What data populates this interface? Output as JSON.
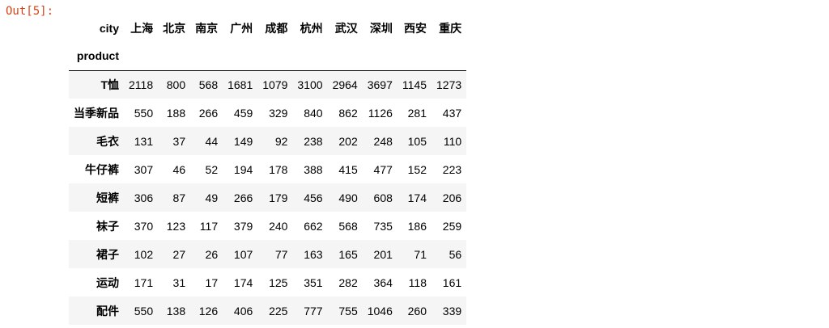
{
  "output_prompt": "Out[5]:",
  "dataframe": {
    "columns_name": "city",
    "index_name": "product",
    "columns": [
      "上海",
      "北京",
      "南京",
      "广州",
      "成都",
      "杭州",
      "武汉",
      "深圳",
      "西安",
      "重庆"
    ],
    "rows": [
      {
        "label": "T恤",
        "values": [
          "2118",
          "800",
          "568",
          "1681",
          "1079",
          "3100",
          "2964",
          "3697",
          "1145",
          "1273"
        ]
      },
      {
        "label": "当季新品",
        "values": [
          "550",
          "188",
          "266",
          "459",
          "329",
          "840",
          "862",
          "1126",
          "281",
          "437"
        ]
      },
      {
        "label": "毛衣",
        "values": [
          "131",
          "37",
          "44",
          "149",
          "92",
          "238",
          "202",
          "248",
          "105",
          "110"
        ]
      },
      {
        "label": "牛仔裤",
        "values": [
          "307",
          "46",
          "52",
          "194",
          "178",
          "388",
          "415",
          "477",
          "152",
          "223"
        ]
      },
      {
        "label": "短裤",
        "values": [
          "306",
          "87",
          "49",
          "266",
          "179",
          "456",
          "490",
          "608",
          "174",
          "206"
        ]
      },
      {
        "label": "袜子",
        "values": [
          "370",
          "123",
          "117",
          "379",
          "240",
          "662",
          "568",
          "735",
          "186",
          "259"
        ]
      },
      {
        "label": "裙子",
        "values": [
          "102",
          "27",
          "26",
          "107",
          "77",
          "163",
          "165",
          "201",
          "71",
          "56"
        ]
      },
      {
        "label": "运动",
        "values": [
          "171",
          "31",
          "17",
          "174",
          "125",
          "351",
          "282",
          "364",
          "118",
          "161"
        ]
      },
      {
        "label": "配件",
        "values": [
          "550",
          "138",
          "126",
          "406",
          "225",
          "777",
          "755",
          "1046",
          "260",
          "339"
        ]
      }
    ]
  },
  "colors": {
    "prompt": "#d84315",
    "stripe": "#f5f5f5",
    "header_rule": "#000000"
  }
}
